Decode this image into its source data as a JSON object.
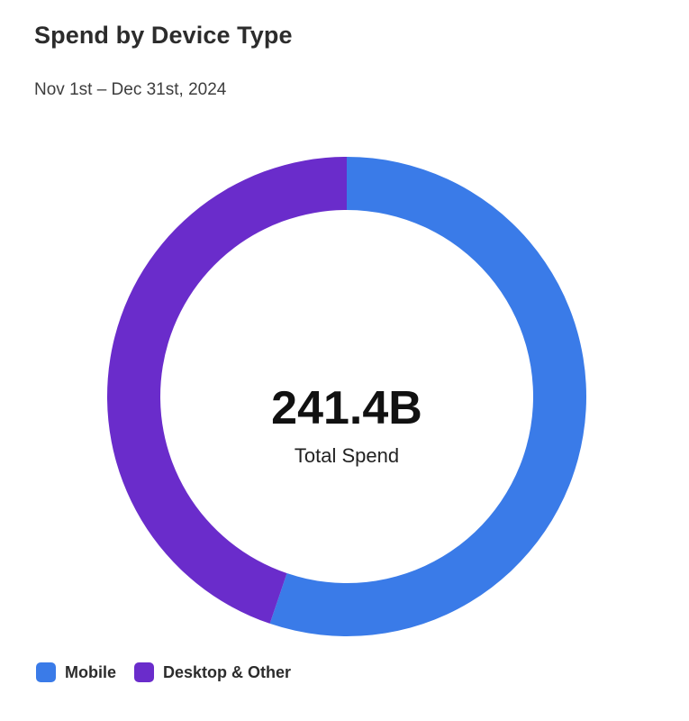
{
  "header": {
    "title": "Spend by Device Type",
    "subtitle": "Nov 1st – Dec 31st, 2024"
  },
  "center": {
    "value": "241.4B",
    "label": "Total Spend"
  },
  "chart_data": {
    "type": "pie",
    "donut": true,
    "total_label": "241.4B",
    "slices": [
      {
        "name": "Mobile",
        "share": 0.552,
        "color": "#3a7be8"
      },
      {
        "name": "Desktop & Other",
        "share": 0.448,
        "color": "#6a2ccb"
      }
    ],
    "legend_position": "bottom-left"
  }
}
